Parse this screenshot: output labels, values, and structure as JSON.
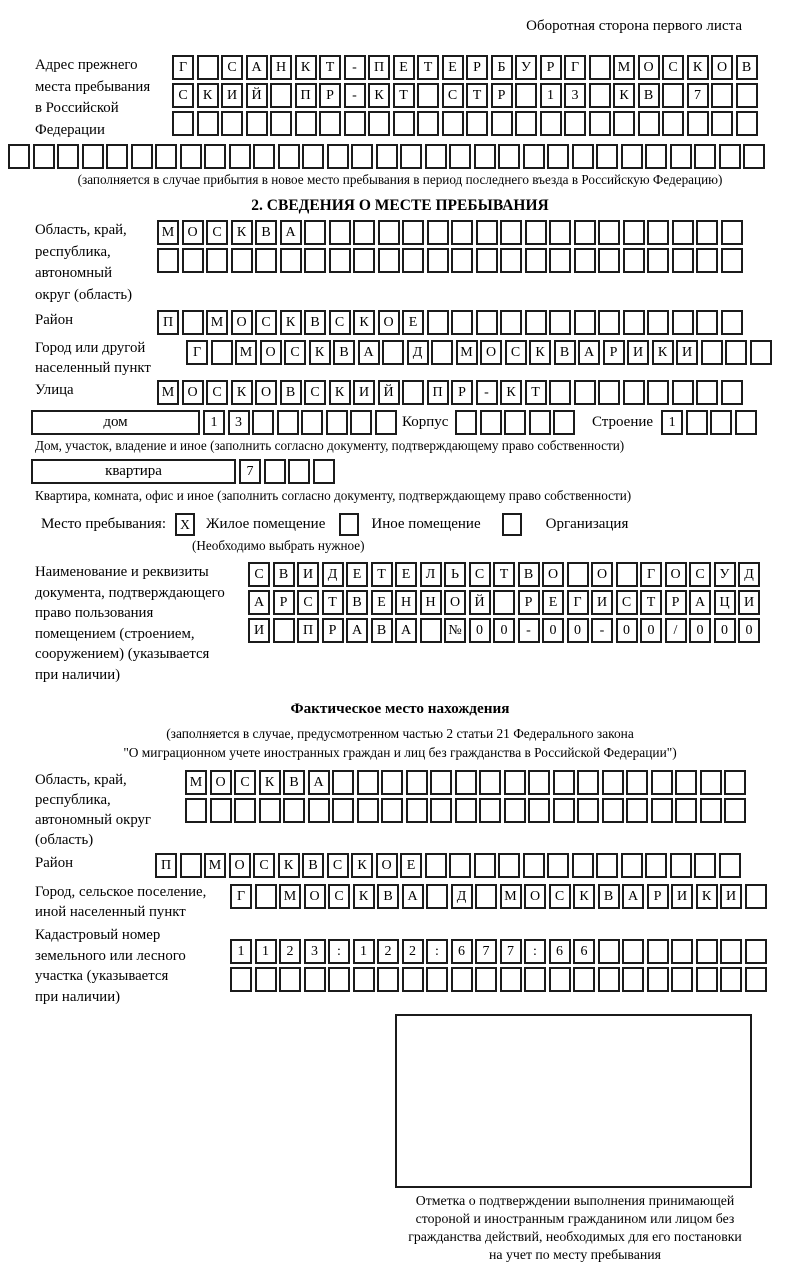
{
  "page": {
    "top_right": "Оборотная сторона первого листа"
  },
  "prev_address": {
    "label": "Адрес прежнего\nместа пребывания\nв Российской\nФедерации",
    "rows": [
      {
        "text": "Г САНКТ-ПЕТЕРБУРГ МОСКОВ",
        "len": 24
      },
      {
        "text": "СКИЙ ПР-КТ СТР 13 КВ 7",
        "len": 24
      },
      {
        "text": "",
        "len": 24
      },
      {
        "text": "",
        "len": 31
      }
    ],
    "note": "(заполняется в случае прибытия в новое место пребывания в период последнего въезда в Российскую Федерацию)"
  },
  "section2": {
    "title": "2. СВЕДЕНИЯ О МЕСТЕ ПРЕБЫВАНИЯ",
    "region": {
      "label": "Область, край,\nреспублика,\nавтономный\nокруг (область)",
      "rows": [
        {
          "text": "МОСКВА",
          "len": 24
        },
        {
          "text": "",
          "len": 24
        }
      ]
    },
    "district": {
      "label": "Район",
      "row": {
        "text": "П МОСКВСКОЕ",
        "len": 24
      }
    },
    "city": {
      "label": "Город или другой\nнаселенный пункт",
      "row": {
        "text": "Г МОСКВА Д МОСКВАРИКИ",
        "len": 24
      }
    },
    "street": {
      "label": "Улица",
      "row": {
        "text": "МОСКОВСКИЙ ПР-КТ",
        "len": 24
      }
    },
    "house": {
      "box_label": "дом",
      "cells": {
        "text": "13",
        "len": 8
      },
      "korpus_label": "Корпус",
      "korpus_cells": {
        "text": "",
        "len": 5
      },
      "stroenie_label": "Строение",
      "stroenie_cells": {
        "text": "1",
        "len": 4
      },
      "note": "Дом, участок, владение и иное (заполнить согласно документу, подтверждающему право собственности)"
    },
    "apartment": {
      "box_label": "квартира",
      "cells": {
        "text": "7",
        "len": 4
      },
      "note": "Квартира, комната, офис и иное (заполнить согласно документу, подтверждающему право собственности)"
    },
    "stay_type": {
      "label": "Место пребывания:",
      "options": [
        {
          "label": "Жилое помещение",
          "mark": "X"
        },
        {
          "label": "Иное помещение",
          "mark": ""
        },
        {
          "label": "Организация",
          "mark": ""
        }
      ],
      "note": "(Необходимо выбрать нужное)"
    },
    "document": {
      "label": "Наименование и реквизиты\nдокумента, подтверждающего\nправо пользования\nпомещением (строением,\nсооружением) (указывается\nпри наличии)",
      "rows": [
        {
          "text": "СВИДЕТЕЛЬСТВО О ГОСУД",
          "len": 21
        },
        {
          "text": "АРСТВЕННОЙ РЕГИСТРАЦИ",
          "len": 21
        },
        {
          "text": "И ПРАВА №00-00-00/000",
          "len": 21
        }
      ]
    }
  },
  "fact": {
    "title": "Фактическое место нахождения",
    "note": "(заполняется в случае, предусмотренном частью 2 статьи 21 Федерального закона\n\"О миграционном учете иностранных граждан и лиц без гражданства в Российской Федерации\")",
    "region": {
      "label": "Область, край,\nреспублика,\nавтономный округ\n(область)",
      "rows": [
        {
          "text": "МОСКВА",
          "len": 23
        },
        {
          "text": "",
          "len": 23
        }
      ]
    },
    "district": {
      "label": "Район",
      "row": {
        "text": "П МОСКВСКОЕ",
        "len": 24
      }
    },
    "city": {
      "label": "Город, сельское поселение,\nиной населенный пункт",
      "row": {
        "text": "Г МОСКВА Д МОСКВАРИКИ",
        "len": 22
      }
    },
    "cadastral": {
      "label": "Кадастровый номер\nземельного или лесного\nучастка (указывается\nпри наличии)",
      "rows": [
        {
          "text": "1123:122:677:66",
          "len": 22
        },
        {
          "text": "",
          "len": 22
        }
      ]
    },
    "stamp_note": "Отметка о подтверждении выполнения принимающей\nстороной и иностранным гражданином или лицом без\nгражданства действий, необходимых для его постановки\nна учет по месту пребывания"
  }
}
